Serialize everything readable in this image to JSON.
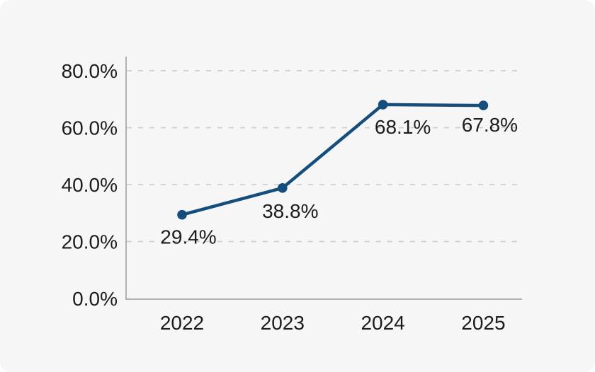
{
  "chart_data": {
    "type": "line",
    "title": "",
    "categories": [
      "2022",
      "2023",
      "2024",
      "2025"
    ],
    "series": [
      {
        "name": "percentage",
        "values": [
          29.4,
          38.8,
          68.1,
          67.8
        ],
        "labels": [
          "29.4%",
          "38.8%",
          "68.1%",
          "67.8%"
        ]
      }
    ],
    "y_ticks": [
      {
        "value": 0,
        "label": "0.0%"
      },
      {
        "value": 20,
        "label": "20.0%"
      },
      {
        "value": 40,
        "label": "40.0%"
      },
      {
        "value": 60,
        "label": "60.0%"
      },
      {
        "value": 80,
        "label": "80.0%"
      }
    ],
    "ylim": [
      0,
      85
    ],
    "grid": "horizontal-dashed",
    "legend": "none",
    "colors": {
      "line": "#154e7d",
      "marker": "#154e7d",
      "axis": "#9b9b9b",
      "gridline": "#c9c9c9",
      "text": "#1c1c1c",
      "card_background": "#f6f6f7",
      "page_background": "#ffffff"
    }
  }
}
